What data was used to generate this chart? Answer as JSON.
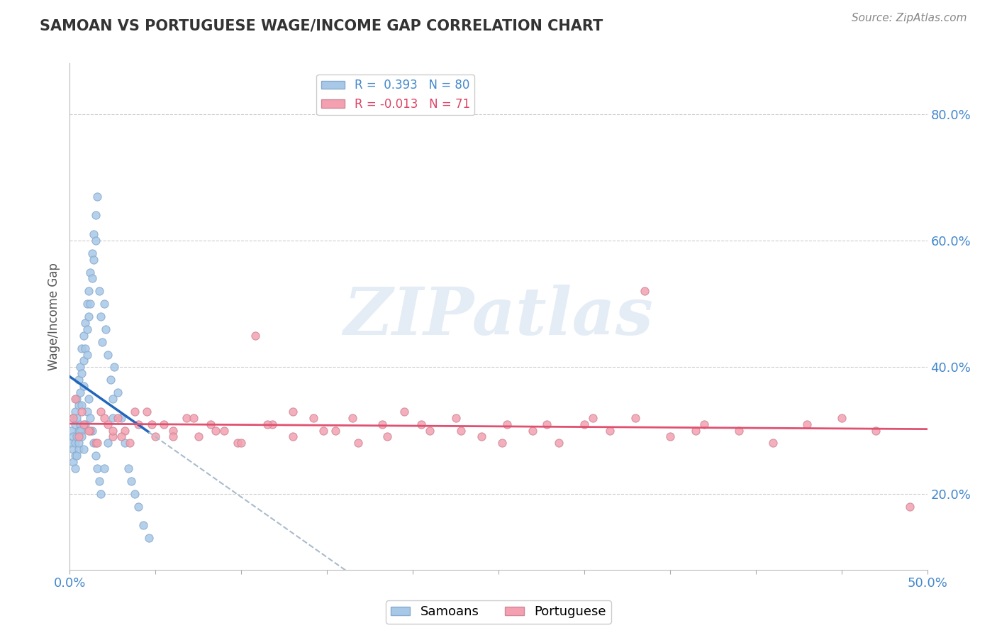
{
  "title": "SAMOAN VS PORTUGUESE WAGE/INCOME GAP CORRELATION CHART",
  "source": "Source: ZipAtlas.com",
  "ylabel": "Wage/Income Gap",
  "ytick_labels": [
    "20.0%",
    "40.0%",
    "60.0%",
    "80.0%"
  ],
  "ytick_values": [
    0.2,
    0.4,
    0.6,
    0.8
  ],
  "xlim": [
    0.0,
    0.5
  ],
  "ylim": [
    0.08,
    0.88
  ],
  "samoan_color": "#a8c8e8",
  "portuguese_color": "#f4a0b0",
  "samoan_trend_color": "#2266bb",
  "portuguese_trend_color": "#e05070",
  "dashed_line_color": "#aabbcc",
  "background_color": "#ffffff",
  "watermark": "ZIPatlas",
  "samoan_x": [
    0.001,
    0.001,
    0.002,
    0.002,
    0.002,
    0.003,
    0.003,
    0.003,
    0.003,
    0.004,
    0.004,
    0.004,
    0.005,
    0.005,
    0.005,
    0.005,
    0.006,
    0.006,
    0.006,
    0.007,
    0.007,
    0.007,
    0.007,
    0.008,
    0.008,
    0.008,
    0.009,
    0.009,
    0.01,
    0.01,
    0.01,
    0.011,
    0.011,
    0.012,
    0.012,
    0.013,
    0.013,
    0.014,
    0.014,
    0.015,
    0.015,
    0.016,
    0.017,
    0.018,
    0.019,
    0.02,
    0.021,
    0.022,
    0.024,
    0.025,
    0.026,
    0.028,
    0.03,
    0.032,
    0.034,
    0.036,
    0.038,
    0.04,
    0.043,
    0.046,
    0.002,
    0.003,
    0.004,
    0.005,
    0.006,
    0.007,
    0.008,
    0.009,
    0.01,
    0.011,
    0.012,
    0.013,
    0.014,
    0.015,
    0.016,
    0.017,
    0.018,
    0.02,
    0.022,
    0.025
  ],
  "samoan_y": [
    0.3,
    0.28,
    0.32,
    0.29,
    0.27,
    0.33,
    0.31,
    0.28,
    0.26,
    0.35,
    0.32,
    0.29,
    0.38,
    0.34,
    0.3,
    0.27,
    0.4,
    0.36,
    0.31,
    0.43,
    0.39,
    0.34,
    0.3,
    0.45,
    0.41,
    0.37,
    0.47,
    0.43,
    0.5,
    0.46,
    0.42,
    0.52,
    0.48,
    0.55,
    0.5,
    0.58,
    0.54,
    0.61,
    0.57,
    0.64,
    0.6,
    0.67,
    0.52,
    0.48,
    0.44,
    0.5,
    0.46,
    0.42,
    0.38,
    0.35,
    0.4,
    0.36,
    0.32,
    0.28,
    0.24,
    0.22,
    0.2,
    0.18,
    0.15,
    0.13,
    0.25,
    0.24,
    0.26,
    0.28,
    0.3,
    0.29,
    0.27,
    0.31,
    0.33,
    0.35,
    0.32,
    0.3,
    0.28,
    0.26,
    0.24,
    0.22,
    0.2,
    0.24,
    0.28,
    0.32
  ],
  "portuguese_x": [
    0.002,
    0.005,
    0.008,
    0.012,
    0.015,
    0.018,
    0.022,
    0.025,
    0.028,
    0.032,
    0.035,
    0.04,
    0.045,
    0.05,
    0.055,
    0.06,
    0.068,
    0.075,
    0.082,
    0.09,
    0.098,
    0.108,
    0.118,
    0.13,
    0.142,
    0.155,
    0.168,
    0.182,
    0.195,
    0.21,
    0.225,
    0.24,
    0.255,
    0.27,
    0.285,
    0.3,
    0.315,
    0.33,
    0.35,
    0.37,
    0.39,
    0.41,
    0.43,
    0.45,
    0.47,
    0.49,
    0.003,
    0.007,
    0.011,
    0.016,
    0.02,
    0.025,
    0.03,
    0.038,
    0.048,
    0.06,
    0.072,
    0.085,
    0.1,
    0.115,
    0.13,
    0.148,
    0.165,
    0.185,
    0.205,
    0.228,
    0.252,
    0.278,
    0.305,
    0.335,
    0.365
  ],
  "portuguese_y": [
    0.32,
    0.29,
    0.31,
    0.3,
    0.28,
    0.33,
    0.31,
    0.29,
    0.32,
    0.3,
    0.28,
    0.31,
    0.33,
    0.29,
    0.31,
    0.3,
    0.32,
    0.29,
    0.31,
    0.3,
    0.28,
    0.45,
    0.31,
    0.29,
    0.32,
    0.3,
    0.28,
    0.31,
    0.33,
    0.3,
    0.32,
    0.29,
    0.31,
    0.3,
    0.28,
    0.31,
    0.3,
    0.32,
    0.29,
    0.31,
    0.3,
    0.28,
    0.31,
    0.32,
    0.3,
    0.18,
    0.35,
    0.33,
    0.3,
    0.28,
    0.32,
    0.3,
    0.29,
    0.33,
    0.31,
    0.29,
    0.32,
    0.3,
    0.28,
    0.31,
    0.33,
    0.3,
    0.32,
    0.29,
    0.31,
    0.3,
    0.28,
    0.31,
    0.32,
    0.52,
    0.3
  ]
}
